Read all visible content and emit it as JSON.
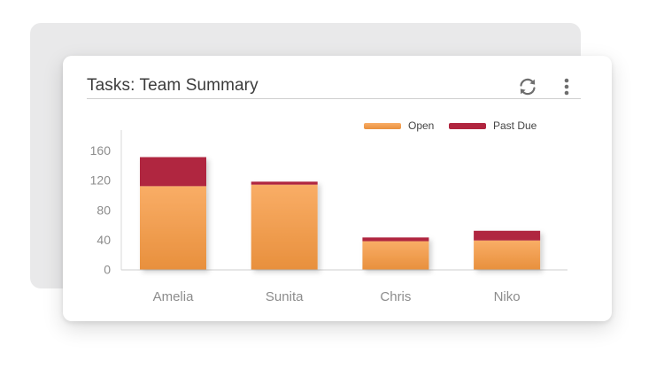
{
  "widget": {
    "title": "Tasks: Team Summary",
    "refresh_icon": "refresh-icon",
    "menu_icon": "more-vertical-icon"
  },
  "colors": {
    "open_top": "#f9ad66",
    "open_bottom": "#e8903d",
    "past_due": "#b0253f"
  },
  "chart_data": {
    "type": "bar",
    "stacked": true,
    "title": "",
    "xlabel": "",
    "ylabel": "",
    "categories": [
      "Amelia",
      "Sunita",
      "Chris",
      "Niko"
    ],
    "series": [
      {
        "name": "Open",
        "values": [
          112,
          114,
          38,
          39
        ]
      },
      {
        "name": "Past Due",
        "values": [
          39,
          4,
          5,
          13
        ]
      }
    ],
    "yticks": [
      0,
      40,
      80,
      120,
      160
    ],
    "ylim": [
      0,
      160
    ],
    "legend": "top-right",
    "grid": false
  }
}
